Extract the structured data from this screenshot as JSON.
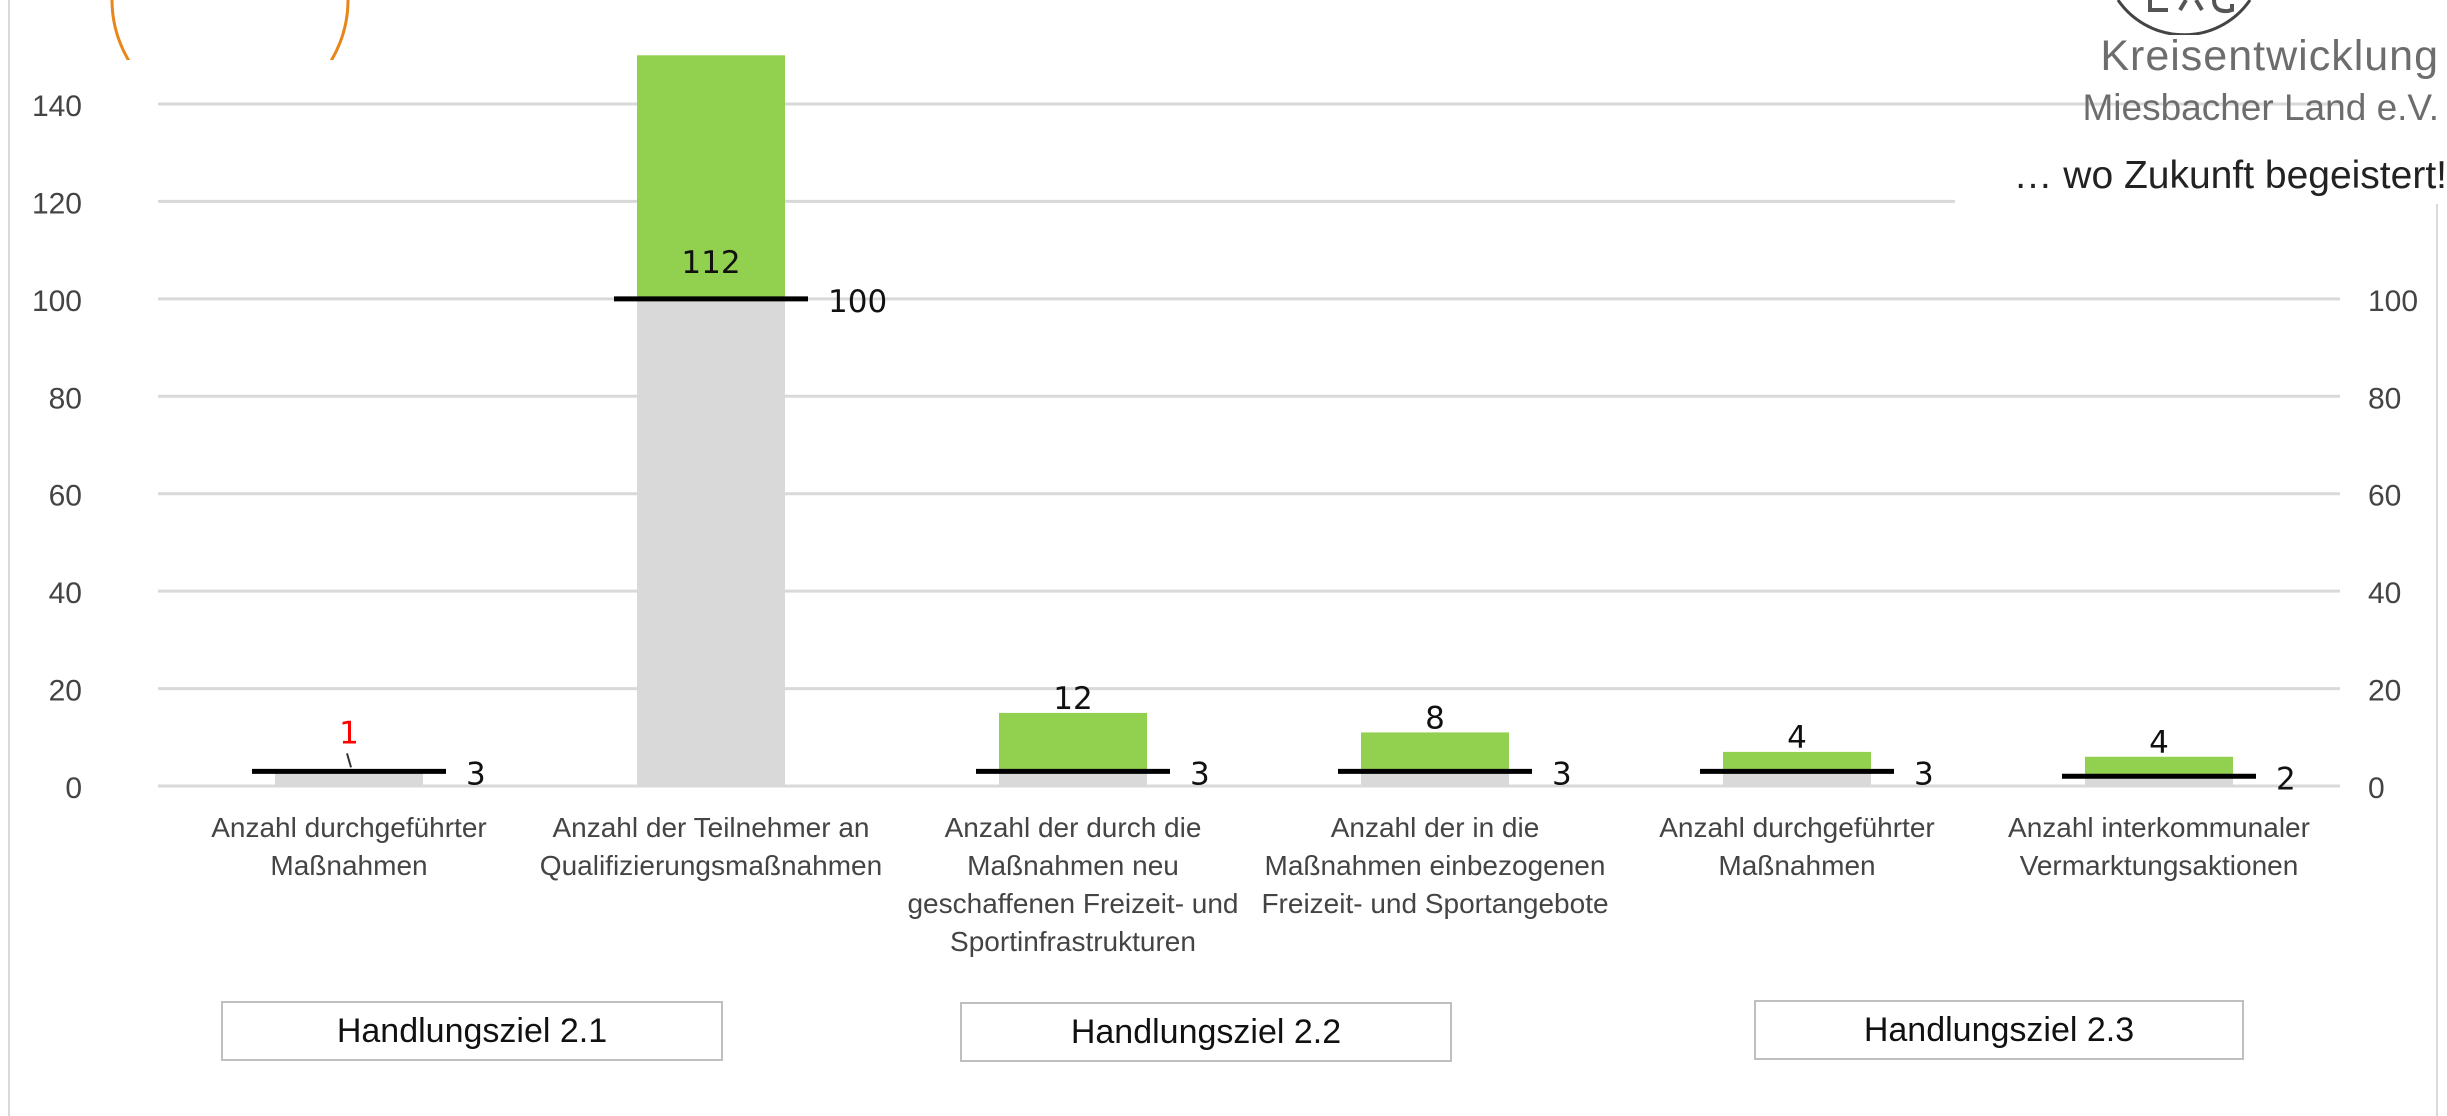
{
  "header": {
    "org_line1": "Kreisentwicklung",
    "org_line2": "Miesbacher Land e.V.",
    "tagline": "… wo Zukunft begeistert!",
    "logo_partial": "LAG"
  },
  "chart_data": {
    "type": "bar",
    "stacked": true,
    "categories": [
      "Anzahl durchgeführter Maßnahmen",
      "Anzahl der Teilnehmer an Qualifizierungsmaßnahmen",
      "Anzahl der durch die Maßnahmen neu geschaffenen Freizeit- und Sportinfrastrukturen",
      "Anzahl der in die Maßnahmen einbezogenen Freizeit- und Sportangebote",
      "Anzahl durchgeführter Maßnahmen",
      "Anzahl interkommunaler Vermarktungsaktionen"
    ],
    "category_lines": [
      [
        "Anzahl durchgeführter",
        "Maßnahmen"
      ],
      [
        "Anzahl der Teilnehmer an",
        "Qualifizierungsmaßnahmen"
      ],
      [
        "Anzahl der durch die",
        "Maßnahmen neu",
        "geschaffenen Freizeit- und",
        "Sportinfrastrukturen"
      ],
      [
        "Anzahl der in die",
        "Maßnahmen einbezogenen",
        "Freizeit- und Sportangebote"
      ],
      [
        "Anzahl durchgeführter",
        "Maßnahmen"
      ],
      [
        "Anzahl interkommunaler",
        "Vermarktungsaktionen"
      ]
    ],
    "actual": [
      1,
      112,
      12,
      8,
      4,
      4
    ],
    "actual_labels": [
      "1",
      "112",
      "12",
      "8",
      "4",
      "4"
    ],
    "target": [
      3,
      100,
      3,
      3,
      3,
      2
    ],
    "target_labels": [
      "3",
      "100",
      "3",
      "3",
      "3",
      "2"
    ],
    "bar_totals": [
      3,
      150,
      15,
      11,
      7,
      6
    ],
    "grey_values": [
      3,
      100,
      3,
      3,
      3,
      2
    ],
    "green_values": [
      0,
      50,
      12,
      8,
      4,
      4
    ],
    "ylim": [
      0,
      150
    ],
    "yticks_left": [
      "0",
      "20",
      "40",
      "60",
      "80",
      "100",
      "120",
      "140"
    ],
    "yticks_right": [
      "0",
      "20",
      "40",
      "60",
      "80",
      "100"
    ],
    "ytick_values_left": [
      0,
      20,
      40,
      60,
      80,
      100,
      120,
      140
    ],
    "ytick_values_right": [
      0,
      20,
      40,
      60,
      80,
      100
    ],
    "grid": true,
    "colors": {
      "grey": "#d9d9d9",
      "green": "#92d050",
      "target_line": "#000000",
      "highlight_label": "#ff0000",
      "grid": "#d9d9d9",
      "logo_orange": "#e8861a"
    },
    "groups": [
      {
        "label": "Handlungsziel 2.1",
        "categories": [
          0,
          1
        ]
      },
      {
        "label": "Handlungsziel 2.2",
        "categories": [
          2,
          3
        ]
      },
      {
        "label": "Handlungsziel 2.3",
        "categories": [
          4,
          5
        ]
      }
    ]
  }
}
